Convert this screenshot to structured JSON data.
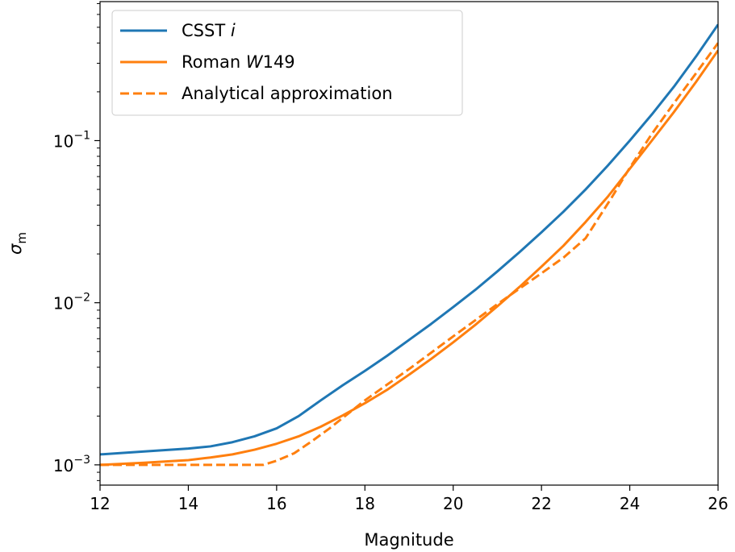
{
  "chart_data": {
    "type": "line",
    "xlabel": "Magnitude",
    "ylabel": "σ",
    "ylabel_sub": "m",
    "xlim": [
      12,
      26
    ],
    "ylim": [
      0.00075,
      0.72
    ],
    "yscale": "log",
    "grid": false,
    "legend_position": "top-left",
    "x_ticks": [
      12,
      14,
      16,
      18,
      20,
      22,
      24,
      26
    ],
    "y_major_ticks": [
      {
        "value": 0.001,
        "base": "10",
        "exp": "−3"
      },
      {
        "value": 0.01,
        "base": "10",
        "exp": "−2"
      },
      {
        "value": 0.1,
        "base": "10",
        "exp": "−1"
      }
    ],
    "series": [
      {
        "name": "CSST ",
        "name_italic": "i",
        "color": "#1f77b4",
        "dash": "solid",
        "x": [
          12,
          13,
          14,
          14.5,
          15,
          15.5,
          16,
          16.5,
          17,
          17.5,
          18,
          18.5,
          19,
          19.5,
          20,
          20.5,
          21,
          21.5,
          22,
          22.5,
          23,
          23.5,
          24,
          24.5,
          25,
          25.5,
          26
        ],
        "y": [
          0.00116,
          0.00121,
          0.00126,
          0.0013,
          0.00138,
          0.0015,
          0.00168,
          0.002,
          0.0025,
          0.0031,
          0.0038,
          0.0047,
          0.0059,
          0.0074,
          0.0094,
          0.012,
          0.0156,
          0.0205,
          0.0272,
          0.0365,
          0.05,
          0.07,
          0.1,
          0.145,
          0.215,
          0.33,
          0.52
        ]
      },
      {
        "name": "Roman ",
        "name_italic": "W",
        "name_suffix": "149",
        "color": "#ff7f0e",
        "dash": "solid",
        "x": [
          12,
          13,
          14,
          14.5,
          15,
          15.5,
          16,
          16.5,
          17,
          17.5,
          18,
          18.5,
          19,
          19.5,
          20,
          20.5,
          21,
          21.5,
          22,
          22.5,
          23,
          23.5,
          24,
          24.5,
          25,
          25.5,
          26
        ],
        "y": [
          0.001,
          0.00103,
          0.00107,
          0.00111,
          0.00116,
          0.00124,
          0.00135,
          0.0015,
          0.00172,
          0.00202,
          0.0024,
          0.0029,
          0.0036,
          0.0045,
          0.0057,
          0.0073,
          0.0095,
          0.0125,
          0.0167,
          0.0225,
          0.0315,
          0.045,
          0.067,
          0.1,
          0.15,
          0.23,
          0.36
        ]
      },
      {
        "name": "Analytical approximation",
        "color": "#ff7f0e",
        "dash": "dashed",
        "x": [
          12,
          13,
          14,
          15,
          15.7,
          16,
          16.4,
          16.8,
          17.2,
          18,
          19,
          20,
          21,
          22,
          22.5,
          23,
          23.6,
          24,
          24.5,
          25,
          25.5,
          26
        ],
        "y": [
          0.001,
          0.001,
          0.001,
          0.001,
          0.001,
          0.00106,
          0.00118,
          0.0014,
          0.00168,
          0.0025,
          0.0039,
          0.0062,
          0.0098,
          0.0152,
          0.019,
          0.025,
          0.045,
          0.068,
          0.11,
          0.17,
          0.26,
          0.4
        ]
      }
    ]
  }
}
